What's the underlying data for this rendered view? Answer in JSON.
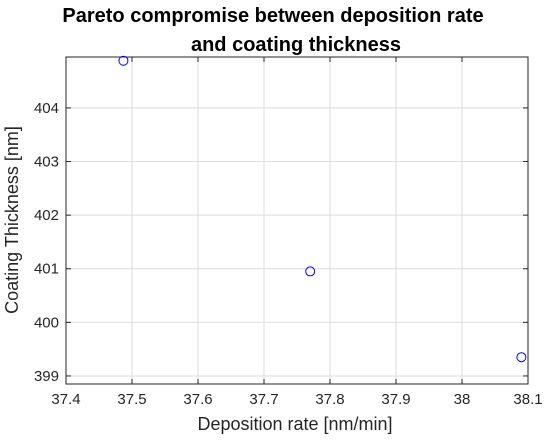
{
  "chart_data": {
    "type": "scatter",
    "title": [
      "Pareto compromise between deposition rate",
      "and coating thickness"
    ],
    "xlabel": "Deposition rate [nm/min]",
    "ylabel": "Coating Thickness [nm]",
    "xlim": [
      37.4,
      38.1
    ],
    "ylim": [
      398.85,
      404.95
    ],
    "xticks": [
      37.4,
      37.5,
      37.6,
      37.7,
      37.8,
      37.9,
      38.0,
      38.1
    ],
    "xtick_labels": [
      "37.4",
      "37.5",
      "37.6",
      "37.7",
      "37.8",
      "37.9",
      "38",
      "38.1"
    ],
    "yticks": [
      399,
      400,
      401,
      402,
      403,
      404
    ],
    "ytick_labels": [
      "399",
      "400",
      "401",
      "402",
      "403",
      "404"
    ],
    "grid": true,
    "marker": "circle-open",
    "color": "#0000ff",
    "points": [
      {
        "x": 37.487,
        "y": 404.88
      },
      {
        "x": 37.77,
        "y": 400.95
      },
      {
        "x": 38.09,
        "y": 399.35
      }
    ]
  }
}
